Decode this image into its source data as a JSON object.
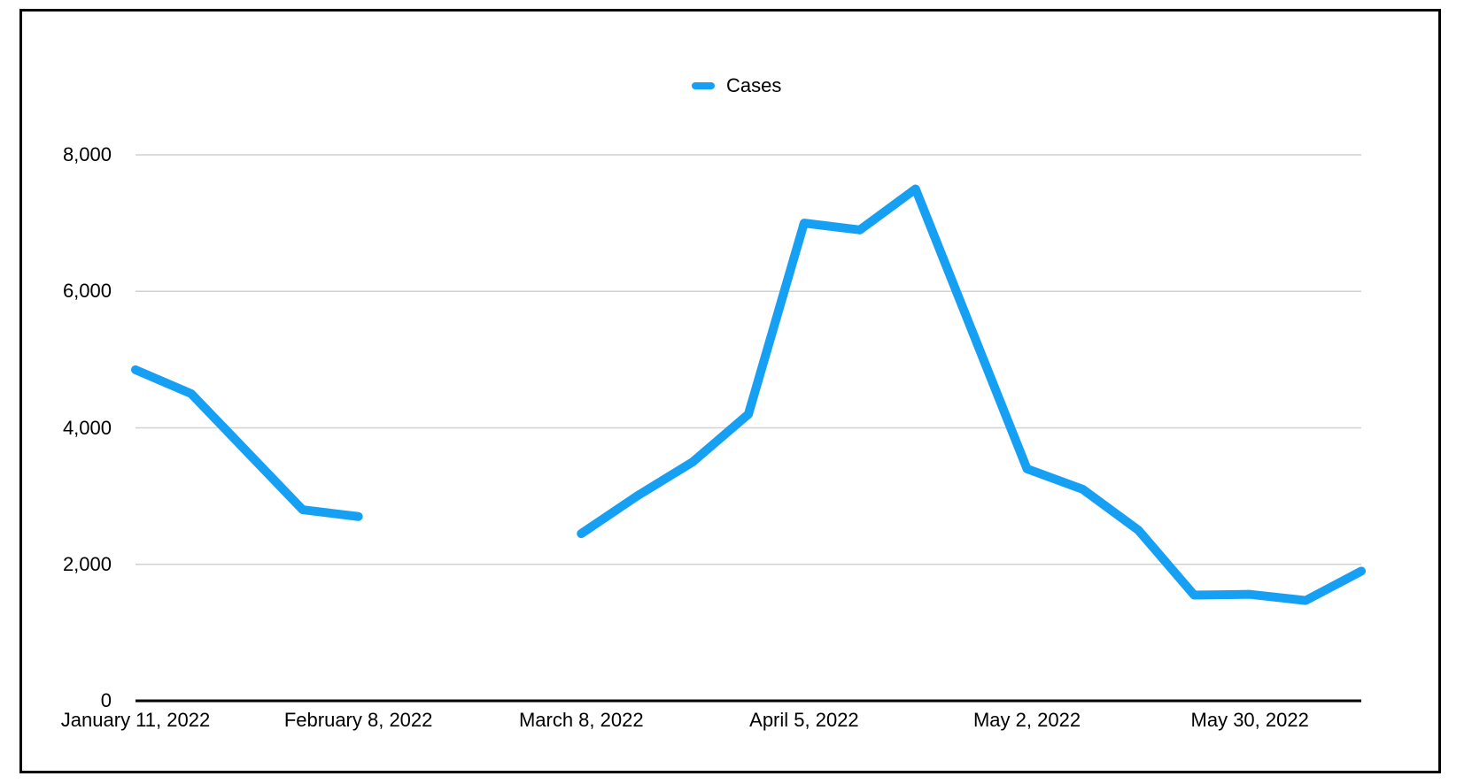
{
  "legend": {
    "label": "Cases"
  },
  "colors": {
    "line": "#16A0F3",
    "grid": "#D2D2D2",
    "axis": "#000000",
    "text": "#000000",
    "frame_border": "#000000",
    "background": "#FFFFFF"
  },
  "chart_data": {
    "type": "line",
    "title": "",
    "xlabel": "",
    "ylabel": "",
    "grid": true,
    "legend_position": "top-center",
    "ylim": [
      0,
      8000
    ],
    "y_ticks": [
      0,
      2000,
      4000,
      6000,
      8000
    ],
    "y_tick_labels": [
      "0",
      "2,000",
      "4,000",
      "6,000",
      "8,000"
    ],
    "x_tick_labels": [
      "January 11, 2022",
      "February 8, 2022",
      "March 8, 2022",
      "April 5, 2022",
      "May 2, 2022",
      "May 30, 2022"
    ],
    "x_tick_positions": [
      0,
      4,
      8,
      12,
      16,
      20
    ],
    "x_point_count": 23,
    "x_interval": "weekly, labeled every 4 weeks",
    "series": [
      {
        "name": "Cases",
        "color": "#16A0F3",
        "values": [
          4850,
          4500,
          3650,
          2800,
          2700,
          null,
          null,
          null,
          2450,
          3000,
          3500,
          4200,
          7000,
          6900,
          7500,
          5450,
          3400,
          3100,
          2500,
          1550,
          1560,
          1470,
          1900
        ]
      }
    ],
    "notes": "gap in line (missing data) between 5th and 9th weekly points (mid-February to early March)"
  }
}
